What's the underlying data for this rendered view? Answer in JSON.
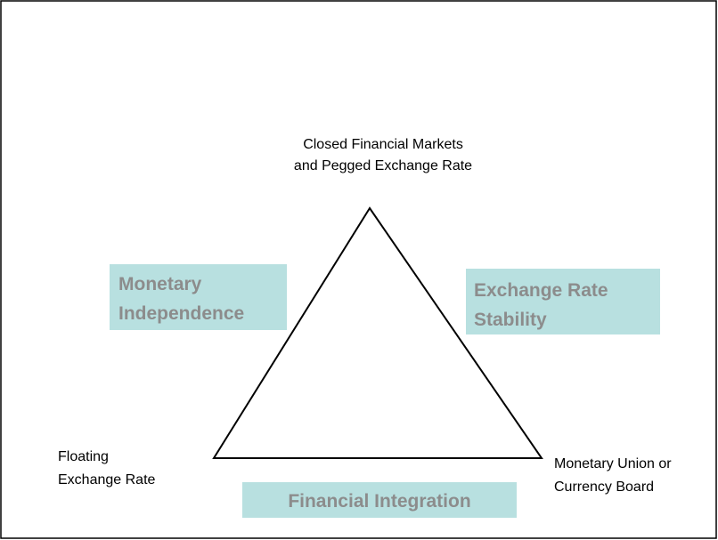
{
  "vertices": {
    "top": [
      "Closed Financial Markets",
      "and Pegged Exchange Rate"
    ],
    "left": [
      "Floating",
      "Exchange Rate"
    ],
    "right": [
      "Monetary Union or",
      "Currency Board"
    ]
  },
  "sides": {
    "left": [
      "Monetary",
      "Independence"
    ],
    "right": [
      "Exchange Rate",
      "Stability"
    ],
    "bottom": [
      "Financial Integration"
    ]
  }
}
